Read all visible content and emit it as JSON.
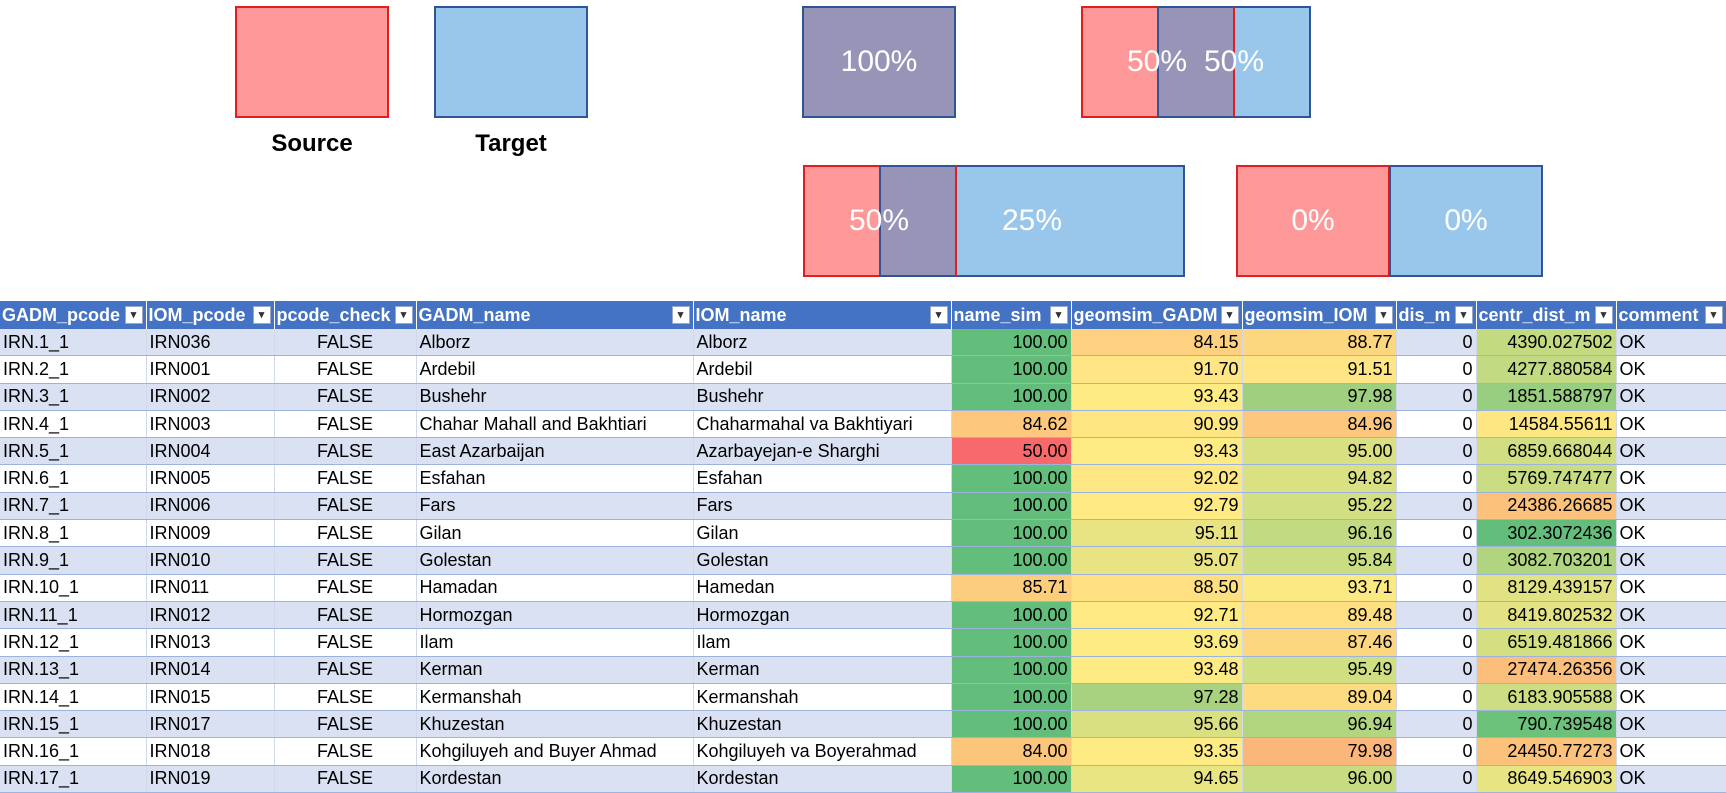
{
  "legend": {
    "source_label": "Source",
    "target_label": "Target",
    "pct_100": "100%",
    "pct_50a": "50%",
    "pct_50b": "50%",
    "pct_50c": "50%",
    "pct_25": "25%",
    "pct_0a": "0%",
    "pct_0b": "0%",
    "colors": {
      "source_fill": "#ff9999",
      "target_fill": "#99c7eb",
      "overlap_fill": "#9894b8",
      "source_border": "#e02020",
      "target_border": "#2f5597"
    }
  },
  "table": {
    "headers": [
      "GADM_pcode",
      "IOM_pcode",
      "pcode_check",
      "GADM_name",
      "IOM_name",
      "name_sim",
      "geomsim_GADM",
      "geomsim_IOM",
      "dis_m",
      "centr_dist_m",
      "comment"
    ],
    "filter_icon": "▾",
    "rows": [
      [
        "IRN.1_1",
        "IRN036",
        "FALSE",
        "Alborz",
        "Alborz",
        "100.00",
        "84.15",
        "88.77",
        "0",
        "4390.027502",
        "OK"
      ],
      [
        "IRN.2_1",
        "IRN001",
        "FALSE",
        "Ardebil",
        "Ardebil",
        "100.00",
        "91.70",
        "91.51",
        "0",
        "4277.880584",
        "OK"
      ],
      [
        "IRN.3_1",
        "IRN002",
        "FALSE",
        "Bushehr",
        "Bushehr",
        "100.00",
        "93.43",
        "97.98",
        "0",
        "1851.588797",
        "OK"
      ],
      [
        "IRN.4_1",
        "IRN003",
        "FALSE",
        "Chahar Mahall and Bakhtiari",
        "Chaharmahal va Bakhtiyari",
        "84.62",
        "90.99",
        "84.96",
        "0",
        "14584.55611",
        "OK"
      ],
      [
        "IRN.5_1",
        "IRN004",
        "FALSE",
        "East Azarbaijan",
        "Azarbayejan-e Sharghi",
        "50.00",
        "93.43",
        "95.00",
        "0",
        "6859.668044",
        "OK"
      ],
      [
        "IRN.6_1",
        "IRN005",
        "FALSE",
        "Esfahan",
        "Esfahan",
        "100.00",
        "92.02",
        "94.82",
        "0",
        "5769.747477",
        "OK"
      ],
      [
        "IRN.7_1",
        "IRN006",
        "FALSE",
        "Fars",
        "Fars",
        "100.00",
        "92.79",
        "95.22",
        "0",
        "24386.26685",
        "OK"
      ],
      [
        "IRN.8_1",
        "IRN009",
        "FALSE",
        "Gilan",
        "Gilan",
        "100.00",
        "95.11",
        "96.16",
        "0",
        "302.3072436",
        "OK"
      ],
      [
        "IRN.9_1",
        "IRN010",
        "FALSE",
        "Golestan",
        "Golestan",
        "100.00",
        "95.07",
        "95.84",
        "0",
        "3082.703201",
        "OK"
      ],
      [
        "IRN.10_1",
        "IRN011",
        "FALSE",
        "Hamadan",
        "Hamedan",
        "85.71",
        "88.50",
        "93.71",
        "0",
        "8129.439157",
        "OK"
      ],
      [
        "IRN.11_1",
        "IRN012",
        "FALSE",
        "Hormozgan",
        "Hormozgan",
        "100.00",
        "92.71",
        "89.48",
        "0",
        "8419.802532",
        "OK"
      ],
      [
        "IRN.12_1",
        "IRN013",
        "FALSE",
        "Ilam",
        "Ilam",
        "100.00",
        "93.69",
        "87.46",
        "0",
        "6519.481866",
        "OK"
      ],
      [
        "IRN.13_1",
        "IRN014",
        "FALSE",
        "Kerman",
        "Kerman",
        "100.00",
        "93.48",
        "95.49",
        "0",
        "27474.26356",
        "OK"
      ],
      [
        "IRN.14_1",
        "IRN015",
        "FALSE",
        "Kermanshah",
        "Kermanshah",
        "100.00",
        "97.28",
        "89.04",
        "0",
        "6183.905588",
        "OK"
      ],
      [
        "IRN.15_1",
        "IRN017",
        "FALSE",
        "Khuzestan",
        "Khuzestan",
        "100.00",
        "95.66",
        "96.94",
        "0",
        "790.739548",
        "OK"
      ],
      [
        "IRN.16_1",
        "IRN018",
        "FALSE",
        "Kohgiluyeh and Buyer Ahmad",
        "Kohgiluyeh va Boyerahmad",
        "84.00",
        "93.35",
        "79.98",
        "0",
        "24450.77273",
        "OK"
      ],
      [
        "IRN.17_1",
        "IRN019",
        "FALSE",
        "Kordestan",
        "Kordestan",
        "100.00",
        "94.65",
        "96.00",
        "0",
        "8649.546903",
        "OK"
      ]
    ],
    "cell_colors": {
      "name_sim": [
        "#63be7b",
        "#63be7b",
        "#63be7b",
        "#fdc87d",
        "#f8696b",
        "#63be7b",
        "#63be7b",
        "#63be7b",
        "#63be7b",
        "#fdcd7e",
        "#63be7b",
        "#63be7b",
        "#63be7b",
        "#63be7b",
        "#63be7b",
        "#fcc57c",
        "#63be7b"
      ],
      "geomsim_GADM": [
        "#fdd17f",
        "#ffe583",
        "#ffeb84",
        "#fee683",
        "#ffeb84",
        "#ffe884",
        "#ffea84",
        "#e8e483",
        "#e9e483",
        "#fedf81",
        "#ffea84",
        "#fdeb84",
        "#ffeb84",
        "#a8d280",
        "#d8e082",
        "#ffeb84",
        "#eae583"
      ],
      "geomsim_IOM": [
        "#fdd680",
        "#ffe583",
        "#9fd07f",
        "#fdc87d",
        "#d8e082",
        "#dae182",
        "#d2df82",
        "#c2da81",
        "#cbdd82",
        "#fbea84",
        "#fedf81",
        "#fdd680",
        "#d0df82",
        "#fddb81",
        "#b2d580",
        "#fbb679",
        "#c7db81"
      ],
      "centr_dist_m": [
        "#c3da81",
        "#c2da81",
        "#98ce7f",
        "#fee683",
        "#d1de82",
        "#c9dc81",
        "#fcc27c",
        "#63be7b",
        "#b0d480",
        "#e1e283",
        "#e4e383",
        "#d4df82",
        "#fcbf7b",
        "#ccdd82",
        "#6cc17b",
        "#fcc27c",
        "#e6e483"
      ]
    }
  }
}
